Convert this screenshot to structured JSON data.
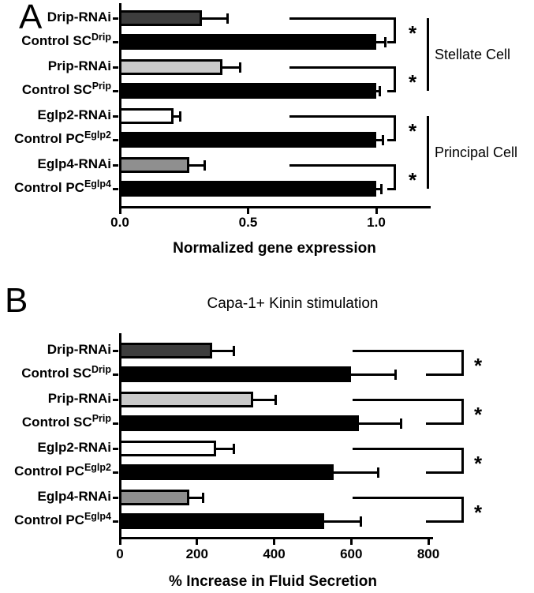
{
  "panels": {
    "a_letter": "A",
    "b_letter": "B"
  },
  "significance_marker": "*",
  "chart_data": [
    {
      "panel": "A",
      "type": "bar",
      "orientation": "horizontal",
      "title": "",
      "xlabel": "Normalized gene expression",
      "xlim": [
        0,
        1.21
      ],
      "xticks": [
        0,
        0.5,
        1.0
      ],
      "xtick_labels": [
        "0.0",
        "0.5",
        "1.0"
      ],
      "categories": [
        {
          "main": "Drip-RNAi",
          "sup": ""
        },
        {
          "main": "Control SC",
          "sup": "Drip"
        },
        {
          "main": "Prip-RNAi",
          "sup": ""
        },
        {
          "main": "Control SC",
          "sup": "Prip"
        },
        {
          "main": "Eglp2-RNAi",
          "sup": ""
        },
        {
          "main": "Control PC",
          "sup": "Eglp2"
        },
        {
          "main": "Eglp4-RNAi",
          "sup": ""
        },
        {
          "main": "Control PC",
          "sup": "Eglp4"
        }
      ],
      "values": [
        0.32,
        1.0,
        0.4,
        1.0,
        0.21,
        1.0,
        0.27,
        1.0
      ],
      "errors_plus": [
        0.1,
        0.035,
        0.07,
        0.015,
        0.025,
        0.025,
        0.06,
        0.02
      ],
      "bar_colors": [
        "#3d3d3d",
        "#000000",
        "#c9c9c9",
        "#000000",
        "#ffffff",
        "#000000",
        "#8f8f8f",
        "#000000"
      ],
      "significance": [
        {
          "rows": [
            0,
            1
          ],
          "label": "*"
        },
        {
          "rows": [
            2,
            3
          ],
          "label": "*"
        },
        {
          "rows": [
            4,
            5
          ],
          "label": "*"
        },
        {
          "rows": [
            6,
            7
          ],
          "label": "*"
        }
      ],
      "groups": [
        {
          "label": "Stellate Cell",
          "from_row": 0,
          "to_row": 3
        },
        {
          "label": "Principal Cell",
          "from_row": 4,
          "to_row": 7
        }
      ]
    },
    {
      "panel": "B",
      "type": "bar",
      "orientation": "horizontal",
      "title": "Capa-1+ Kinin stimulation",
      "xlabel": "% Increase in Fluid Secretion",
      "xlim": [
        0,
        812
      ],
      "xticks": [
        0,
        200,
        400,
        600,
        800
      ],
      "xtick_labels": [
        "0",
        "200",
        "400",
        "600",
        "800"
      ],
      "categories": [
        {
          "main": "Drip-RNAi",
          "sup": ""
        },
        {
          "main": "Control SC",
          "sup": "Drip"
        },
        {
          "main": "Prip-RNAi",
          "sup": ""
        },
        {
          "main": "Control SC",
          "sup": "Prip"
        },
        {
          "main": "Eglp2-RNAi",
          "sup": ""
        },
        {
          "main": "Control PC",
          "sup": "Eglp2"
        },
        {
          "main": "Eglp4-RNAi",
          "sup": ""
        },
        {
          "main": "Control PC",
          "sup": "Eglp4"
        }
      ],
      "values": [
        240,
        600,
        345,
        620,
        250,
        555,
        180,
        530
      ],
      "errors_plus": [
        55,
        115,
        60,
        110,
        45,
        115,
        35,
        95
      ],
      "bar_colors": [
        "#3d3d3d",
        "#000000",
        "#c9c9c9",
        "#000000",
        "#ffffff",
        "#000000",
        "#8f8f8f",
        "#000000"
      ],
      "significance": [
        {
          "rows": [
            0,
            1
          ],
          "label": "*"
        },
        {
          "rows": [
            2,
            3
          ],
          "label": "*"
        },
        {
          "rows": [
            4,
            5
          ],
          "label": "*"
        },
        {
          "rows": [
            6,
            7
          ],
          "label": "*"
        }
      ],
      "groups": []
    }
  ]
}
